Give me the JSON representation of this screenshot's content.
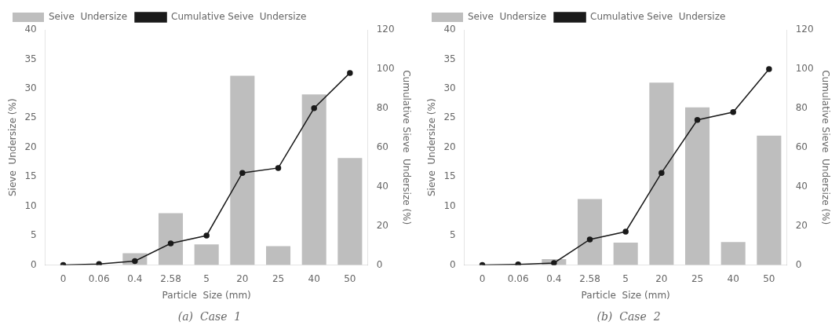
{
  "chart_data": [
    {
      "type": "bar",
      "subtitle": "(a)  Case  1",
      "xlabel": "Particle  Size (mm)",
      "ylabel": "Sieve  Undersize (%)",
      "y2label": "Cumulative Sieve  Undersize (%)",
      "categories": [
        "0",
        "0.06",
        "0.4",
        "2.58",
        "5",
        "20",
        "25",
        "40",
        "50"
      ],
      "series": [
        {
          "name": "Seive  Undersize",
          "type": "bar",
          "color": "#BEBEBE",
          "values": [
            0,
            0,
            2.0,
            8.8,
            3.5,
            32.2,
            3.2,
            29.0,
            18.2
          ]
        },
        {
          "name": "Cumulative Seive  Undersize",
          "type": "line",
          "axis": "y2",
          "color": "#1a1a1a",
          "marker": "circle",
          "values": [
            0,
            0.5,
            2.0,
            11.0,
            15.0,
            47.0,
            49.5,
            80.0,
            98.0
          ]
        }
      ],
      "ylim": [
        0,
        40
      ],
      "yticks": [
        0,
        5,
        10,
        15,
        20,
        25,
        30,
        35,
        40
      ],
      "y2lim": [
        0,
        120
      ],
      "y2ticks": [
        0,
        20,
        40,
        60,
        80,
        100,
        120
      ],
      "grid": false,
      "legend": "upper left"
    },
    {
      "type": "bar",
      "subtitle": "(b)  Case  2",
      "xlabel": "Particle  Size (mm)",
      "ylabel": "Sieve  Undersize (%)",
      "y2label": "Cumulative Sieve  Undersize (%)",
      "categories": [
        "0",
        "0.06",
        "0.4",
        "2.58",
        "5",
        "20",
        "25",
        "40",
        "50"
      ],
      "series": [
        {
          "name": "Seive  Undersize",
          "type": "bar",
          "color": "#BEBEBE",
          "values": [
            0,
            0,
            1.0,
            11.2,
            3.8,
            31.0,
            26.8,
            3.9,
            22.0
          ]
        },
        {
          "name": "Cumulative Seive  Undersize",
          "type": "line",
          "axis": "y2",
          "color": "#1a1a1a",
          "marker": "circle",
          "values": [
            0,
            0.3,
            1.0,
            13.0,
            17.0,
            47.0,
            74.0,
            78.0,
            100.0
          ]
        }
      ],
      "ylim": [
        0,
        40
      ],
      "yticks": [
        0,
        5,
        10,
        15,
        20,
        25,
        30,
        35,
        40
      ],
      "y2lim": [
        0,
        120
      ],
      "y2ticks": [
        0,
        20,
        40,
        60,
        80,
        100,
        120
      ],
      "grid": false,
      "legend": "upper left"
    }
  ]
}
